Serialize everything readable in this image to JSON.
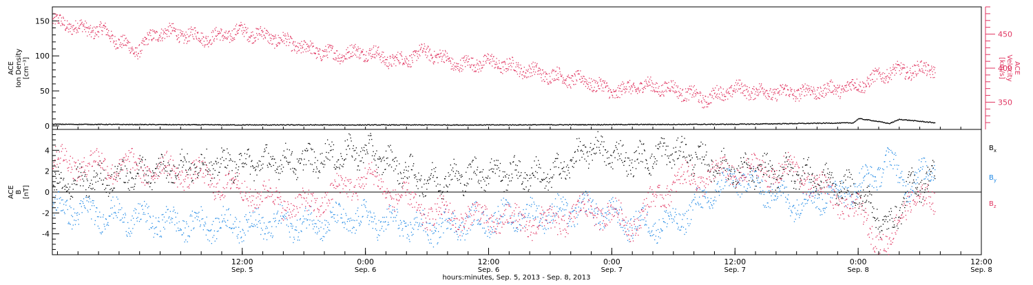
{
  "chart_data": {
    "type": "scatter",
    "x_axis": {
      "title": "hours:minutes, Sep.  5, 2013 - Sep.  8, 2013",
      "start": "2013-09-04T17:30",
      "end": "2013-09-08T12:00",
      "ticks": [
        {
          "time": "2013-09-05T12:00",
          "hour_label": "12:00",
          "day_label": "Sep. 5"
        },
        {
          "time": "2013-09-06T00:00",
          "hour_label": "0:00",
          "day_label": "Sep. 6"
        },
        {
          "time": "2013-09-06T12:00",
          "hour_label": "12:00",
          "day_label": "Sep. 6"
        },
        {
          "time": "2013-09-07T00:00",
          "hour_label": "0:00",
          "day_label": "Sep. 7"
        },
        {
          "time": "2013-09-07T12:00",
          "hour_label": "12:00",
          "day_label": "Sep. 7"
        },
        {
          "time": "2013-09-08T00:00",
          "hour_label": "0:00",
          "day_label": "Sep. 8"
        },
        {
          "time": "2013-09-08T12:00",
          "hour_label": "12:00",
          "day_label": "Sep. 8"
        }
      ]
    },
    "panels": [
      {
        "name": "plasma",
        "left_axis": {
          "label_lines": [
            "ACE",
            "Ion Density",
            "[cm⁻³]"
          ],
          "range": [
            -5,
            170
          ],
          "ticks": [
            0,
            50,
            100,
            150
          ],
          "color": "#000000"
        },
        "right_axis": {
          "label_lines": [
            "ACE",
            "Velocity",
            "[km/s]"
          ],
          "range": [
            310,
            490
          ],
          "ticks": [
            350,
            400,
            450
          ],
          "color": "#e0335f"
        },
        "series": [
          {
            "id": "velocity",
            "axis": "right",
            "color": "#e0335f",
            "keypoints": [
              [
                "2013-09-04T17:30",
                470
              ],
              [
                "2013-09-04T20:00",
                460
              ],
              [
                "2013-09-04T22:30",
                455
              ],
              [
                "2013-09-05T00:00",
                440
              ],
              [
                "2013-09-05T01:30",
                425
              ],
              [
                "2013-09-05T04:00",
                455
              ],
              [
                "2013-09-05T06:00",
                450
              ],
              [
                "2013-09-05T09:00",
                445
              ],
              [
                "2013-09-05T12:00",
                455
              ],
              [
                "2013-09-05T15:00",
                445
              ],
              [
                "2013-09-05T18:00",
                430
              ],
              [
                "2013-09-05T21:00",
                420
              ],
              [
                "2013-09-06T00:00",
                425
              ],
              [
                "2013-09-06T03:00",
                410
              ],
              [
                "2013-09-06T06:00",
                425
              ],
              [
                "2013-09-06T09:00",
                405
              ],
              [
                "2013-09-06T12:00",
                410
              ],
              [
                "2013-09-06T15:00",
                400
              ],
              [
                "2013-09-06T18:00",
                390
              ],
              [
                "2013-09-06T20:00",
                385
              ],
              [
                "2013-09-06T22:00",
                380
              ],
              [
                "2013-09-07T00:00",
                365
              ],
              [
                "2013-09-07T03:00",
                375
              ],
              [
                "2013-09-07T06:00",
                370
              ],
              [
                "2013-09-07T09:00",
                355
              ],
              [
                "2013-09-07T12:00",
                370
              ],
              [
                "2013-09-07T15:00",
                365
              ],
              [
                "2013-09-07T18:00",
                365
              ],
              [
                "2013-09-07T21:00",
                368
              ],
              [
                "2013-09-08T00:00",
                375
              ],
              [
                "2013-09-08T03:00",
                395
              ],
              [
                "2013-09-08T06:00",
                398
              ],
              [
                "2013-09-08T07:30",
                400
              ]
            ]
          },
          {
            "id": "density",
            "axis": "left",
            "color": "#000000",
            "keypoints": [
              [
                "2013-09-04T17:30",
                3
              ],
              [
                "2013-09-05T12:00",
                2
              ],
              [
                "2013-09-06T12:00",
                2
              ],
              [
                "2013-09-07T12:00",
                3
              ],
              [
                "2013-09-07T23:30",
                5
              ],
              [
                "2013-09-08T00:00",
                11
              ],
              [
                "2013-09-08T01:30",
                8
              ],
              [
                "2013-09-08T03:00",
                4
              ],
              [
                "2013-09-08T04:00",
                10
              ],
              [
                "2013-09-08T07:30",
                5
              ]
            ]
          }
        ]
      },
      {
        "name": "magnetic-field",
        "left_axis": {
          "label_lines": [
            "ACE",
            "B",
            "[nT]"
          ],
          "range": [
            -6,
            6
          ],
          "ticks": [
            -4,
            -2,
            0,
            2,
            4
          ],
          "color": "#000000"
        },
        "zero_line": true,
        "legend": [
          {
            "text": "B",
            "sub": "x",
            "color": "#000000"
          },
          {
            "text": "B",
            "sub": "y",
            "color": "#1e88e5"
          },
          {
            "text": "B",
            "sub": "z",
            "color": "#e0335f"
          }
        ],
        "series": [
          {
            "id": "Bx",
            "color": "#000000",
            "keypoints": [
              [
                "2013-09-04T17:30",
                0.5
              ],
              [
                "2013-09-05T06:00",
                2.5
              ],
              [
                "2013-09-05T18:00",
                3.0
              ],
              [
                "2013-09-06T00:00",
                4.0
              ],
              [
                "2013-09-06T06:00",
                1.0
              ],
              [
                "2013-09-06T12:00",
                2.0
              ],
              [
                "2013-09-06T18:00",
                1.5
              ],
              [
                "2013-09-06T22:00",
                4.3
              ],
              [
                "2013-09-07T02:00",
                3.0
              ],
              [
                "2013-09-07T06:00",
                4.0
              ],
              [
                "2013-09-07T12:00",
                2.0
              ],
              [
                "2013-09-07T18:00",
                2.0
              ],
              [
                "2013-09-08T00:00",
                0.0
              ],
              [
                "2013-09-08T03:00",
                -3.5
              ],
              [
                "2013-09-08T05:00",
                0.5
              ],
              [
                "2013-09-08T07:30",
                1.5
              ]
            ]
          },
          {
            "id": "By",
            "color": "#1e88e5",
            "keypoints": [
              [
                "2013-09-04T17:30",
                -1.5
              ],
              [
                "2013-09-05T06:00",
                -3.0
              ],
              [
                "2013-09-05T18:00",
                -3.0
              ],
              [
                "2013-09-06T00:00",
                -2.5
              ],
              [
                "2013-09-06T06:00",
                -3.5
              ],
              [
                "2013-09-06T12:00",
                -2.5
              ],
              [
                "2013-09-06T18:00",
                -2.0
              ],
              [
                "2013-09-06T22:00",
                -1.5
              ],
              [
                "2013-09-07T02:00",
                -3.0
              ],
              [
                "2013-09-07T06:00",
                -3.0
              ],
              [
                "2013-09-07T12:00",
                1.5
              ],
              [
                "2013-09-07T18:00",
                -1.0
              ],
              [
                "2013-09-08T00:00",
                0.5
              ],
              [
                "2013-09-08T03:00",
                3.0
              ],
              [
                "2013-09-08T05:00",
                0.5
              ],
              [
                "2013-09-08T07:30",
                3.0
              ]
            ]
          },
          {
            "id": "Bz",
            "color": "#e0335f",
            "keypoints": [
              [
                "2013-09-04T17:30",
                3.0
              ],
              [
                "2013-09-05T06:00",
                2.0
              ],
              [
                "2013-09-05T18:00",
                -1.5
              ],
              [
                "2013-09-06T00:00",
                1.5
              ],
              [
                "2013-09-06T06:00",
                -2.0
              ],
              [
                "2013-09-06T12:00",
                -2.5
              ],
              [
                "2013-09-06T18:00",
                -3.0
              ],
              [
                "2013-09-06T22:00",
                -1.5
              ],
              [
                "2013-09-07T02:00",
                -3.0
              ],
              [
                "2013-09-07T06:00",
                1.0
              ],
              [
                "2013-09-07T12:00",
                2.0
              ],
              [
                "2013-09-07T18:00",
                2.0
              ],
              [
                "2013-09-08T00:00",
                -2.0
              ],
              [
                "2013-09-08T03:00",
                -5.5
              ],
              [
                "2013-09-08T05:00",
                0.0
              ],
              [
                "2013-09-08T07:30",
                -1.5
              ]
            ]
          }
        ]
      }
    ]
  }
}
